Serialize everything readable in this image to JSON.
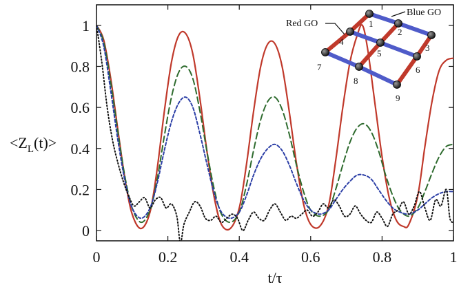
{
  "chart_data": {
    "type": "line",
    "title": "",
    "xlabel": "t/τ",
    "ylabel": "<Z_L(t)>",
    "ylabel_main": "<Z",
    "ylabel_sub": "L",
    "ylabel_tail": "(t)>",
    "xlim": [
      0,
      1
    ],
    "ylim": [
      -0.05,
      1.1
    ],
    "xticks": [
      0,
      0.2,
      0.4,
      0.6,
      0.8,
      1
    ],
    "xtick_labels": [
      "0",
      "0.2",
      "0.4",
      "0.6",
      "0.8",
      "1"
    ],
    "yticks": [
      0,
      0.2,
      0.4,
      0.6,
      0.8,
      1
    ],
    "ytick_labels": [
      "0",
      "0.2",
      "0.4",
      "0.6",
      "0.8",
      "1"
    ],
    "grid": false,
    "series": [
      {
        "color": "#c0392b",
        "dash": "solid",
        "x": [
          0,
          0.02,
          0.04,
          0.06,
          0.08,
          0.1,
          0.125,
          0.15,
          0.17,
          0.19,
          0.21,
          0.23,
          0.25,
          0.27,
          0.29,
          0.31,
          0.33,
          0.35,
          0.375,
          0.4,
          0.42,
          0.44,
          0.46,
          0.48,
          0.5,
          0.52,
          0.54,
          0.56,
          0.58,
          0.6,
          0.625,
          0.65,
          0.67,
          0.69,
          0.71,
          0.73,
          0.745,
          0.76,
          0.78,
          0.8,
          0.82,
          0.84,
          0.86,
          0.875,
          0.9,
          0.92,
          0.94,
          0.96,
          0.98,
          1.0
        ],
        "y": [
          1.0,
          0.93,
          0.74,
          0.49,
          0.25,
          0.08,
          0.01,
          0.09,
          0.3,
          0.58,
          0.82,
          0.95,
          0.96,
          0.86,
          0.64,
          0.38,
          0.16,
          0.03,
          0.01,
          0.11,
          0.32,
          0.58,
          0.8,
          0.91,
          0.91,
          0.8,
          0.58,
          0.33,
          0.13,
          0.03,
          0.02,
          0.12,
          0.34,
          0.6,
          0.82,
          0.95,
          1.0,
          0.88,
          0.62,
          0.36,
          0.16,
          0.05,
          0.02,
          0.03,
          0.17,
          0.41,
          0.63,
          0.78,
          0.83,
          0.84
        ]
      },
      {
        "color": "#2e6b2e",
        "dash": "long",
        "x": [
          0,
          0.02,
          0.04,
          0.06,
          0.08,
          0.1,
          0.125,
          0.15,
          0.17,
          0.19,
          0.21,
          0.23,
          0.25,
          0.27,
          0.29,
          0.31,
          0.33,
          0.35,
          0.375,
          0.4,
          0.42,
          0.44,
          0.46,
          0.48,
          0.5,
          0.52,
          0.54,
          0.56,
          0.58,
          0.6,
          0.625,
          0.65,
          0.67,
          0.69,
          0.71,
          0.73,
          0.75,
          0.77,
          0.79,
          0.81,
          0.83,
          0.85,
          0.875,
          0.9,
          0.92,
          0.94,
          0.96,
          0.98,
          1.0
        ],
        "y": [
          1.0,
          0.92,
          0.72,
          0.48,
          0.26,
          0.11,
          0.04,
          0.1,
          0.25,
          0.46,
          0.65,
          0.77,
          0.8,
          0.74,
          0.58,
          0.38,
          0.2,
          0.08,
          0.04,
          0.09,
          0.22,
          0.39,
          0.54,
          0.63,
          0.65,
          0.59,
          0.47,
          0.32,
          0.19,
          0.1,
          0.07,
          0.1,
          0.2,
          0.32,
          0.43,
          0.5,
          0.52,
          0.48,
          0.39,
          0.27,
          0.17,
          0.1,
          0.07,
          0.11,
          0.19,
          0.28,
          0.36,
          0.41,
          0.42
        ]
      },
      {
        "color": "#2b3ea6",
        "dash": "short",
        "x": [
          0,
          0.02,
          0.04,
          0.06,
          0.08,
          0.1,
          0.125,
          0.15,
          0.17,
          0.19,
          0.21,
          0.23,
          0.25,
          0.27,
          0.29,
          0.31,
          0.33,
          0.35,
          0.375,
          0.4,
          0.42,
          0.44,
          0.46,
          0.48,
          0.5,
          0.52,
          0.54,
          0.56,
          0.58,
          0.6,
          0.625,
          0.65,
          0.67,
          0.69,
          0.71,
          0.73,
          0.75,
          0.77,
          0.79,
          0.81,
          0.83,
          0.85,
          0.875,
          0.9,
          0.92,
          0.94,
          0.96,
          0.98,
          1.0
        ],
        "y": [
          1.0,
          0.9,
          0.68,
          0.44,
          0.24,
          0.11,
          0.06,
          0.11,
          0.23,
          0.39,
          0.53,
          0.62,
          0.65,
          0.6,
          0.47,
          0.32,
          0.18,
          0.09,
          0.06,
          0.09,
          0.17,
          0.27,
          0.35,
          0.4,
          0.42,
          0.39,
          0.32,
          0.23,
          0.15,
          0.1,
          0.08,
          0.1,
          0.15,
          0.2,
          0.24,
          0.27,
          0.27,
          0.25,
          0.2,
          0.15,
          0.11,
          0.09,
          0.08,
          0.1,
          0.13,
          0.16,
          0.18,
          0.19,
          0.19
        ]
      },
      {
        "color": "#111111",
        "dash": "dot",
        "x": [
          0,
          0.015,
          0.03,
          0.045,
          0.06,
          0.075,
          0.09,
          0.105,
          0.12,
          0.135,
          0.15,
          0.165,
          0.18,
          0.195,
          0.21,
          0.225,
          0.235,
          0.245,
          0.26,
          0.275,
          0.29,
          0.305,
          0.32,
          0.335,
          0.35,
          0.365,
          0.38,
          0.395,
          0.41,
          0.425,
          0.44,
          0.455,
          0.47,
          0.485,
          0.5,
          0.515,
          0.53,
          0.545,
          0.56,
          0.575,
          0.59,
          0.605,
          0.62,
          0.635,
          0.65,
          0.665,
          0.68,
          0.695,
          0.71,
          0.725,
          0.74,
          0.755,
          0.77,
          0.785,
          0.8,
          0.815,
          0.83,
          0.845,
          0.86,
          0.875,
          0.89,
          0.905,
          0.92,
          0.935,
          0.95,
          0.965,
          0.98,
          0.99,
          1.0
        ],
        "y": [
          1.0,
          0.82,
          0.6,
          0.44,
          0.33,
          0.24,
          0.17,
          0.12,
          0.14,
          0.16,
          0.11,
          0.15,
          0.16,
          0.11,
          0.13,
          0.07,
          -0.06,
          0.03,
          0.09,
          0.14,
          0.12,
          0.06,
          0.05,
          0.07,
          0.04,
          0.06,
          0.08,
          0.06,
          0.0,
          0.05,
          0.09,
          0.06,
          0.05,
          0.1,
          0.13,
          0.09,
          0.05,
          0.07,
          0.06,
          0.08,
          0.1,
          0.07,
          0.09,
          0.13,
          0.11,
          0.15,
          0.12,
          0.07,
          0.08,
          0.12,
          0.08,
          0.05,
          0.04,
          0.09,
          0.06,
          0.02,
          0.08,
          0.1,
          0.14,
          0.08,
          0.12,
          0.19,
          0.11,
          0.05,
          0.15,
          0.12,
          0.2,
          0.06,
          0.04
        ]
      }
    ],
    "inset": {
      "labels": {
        "red": "Red GO",
        "blue": "Blue GO"
      },
      "nodes": [
        "1",
        "2",
        "3",
        "4",
        "5",
        "6",
        "7",
        "8",
        "9"
      ]
    }
  },
  "colors": {
    "red_go": "#c0392b",
    "blue_go": "#4f5bc9",
    "node": "#1a1a1a"
  }
}
